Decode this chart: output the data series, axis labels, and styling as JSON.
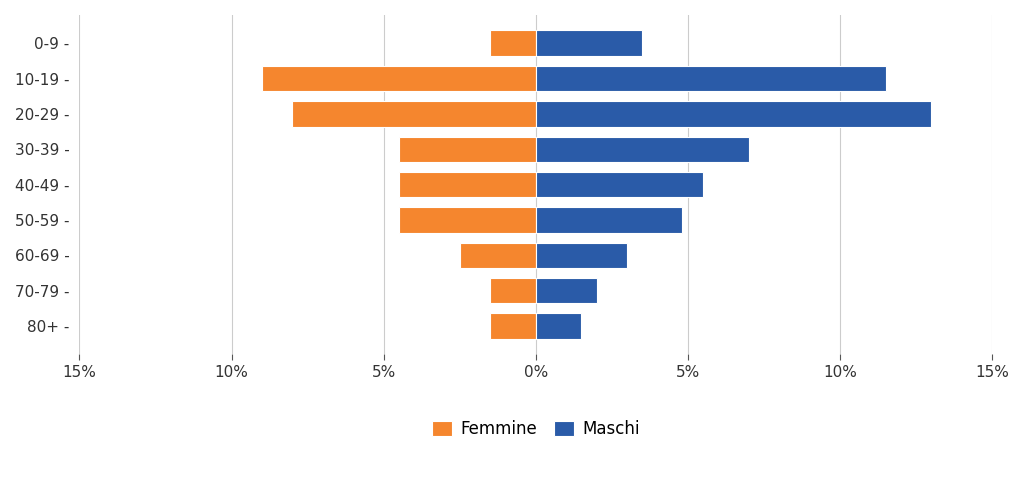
{
  "age_groups": [
    "0-9",
    "10-19",
    "20-29",
    "30-39",
    "40-49",
    "50-59",
    "60-69",
    "70-79",
    "80+"
  ],
  "femmine": [
    1.5,
    9.0,
    8.0,
    4.5,
    4.5,
    4.5,
    2.5,
    1.5,
    1.5
  ],
  "maschi": [
    3.5,
    11.5,
    13.0,
    7.0,
    5.5,
    4.8,
    3.0,
    2.0,
    1.5
  ],
  "femmine_color": "#F5862E",
  "maschi_color": "#2A5BA8",
  "background_color": "#FFFFFF",
  "grid_color": "#CCCCCC",
  "xlim": [
    -15,
    15
  ],
  "xticks": [
    -15,
    -10,
    -5,
    0,
    5,
    10,
    15
  ],
  "xtick_labels": [
    "15%",
    "10%",
    "5%",
    "0%",
    "5%",
    "10%",
    "15%"
  ],
  "bar_height": 0.72,
  "legend_femmine": "Femmine",
  "legend_maschi": "Maschi",
  "tick_fontsize": 11,
  "legend_fontsize": 12
}
